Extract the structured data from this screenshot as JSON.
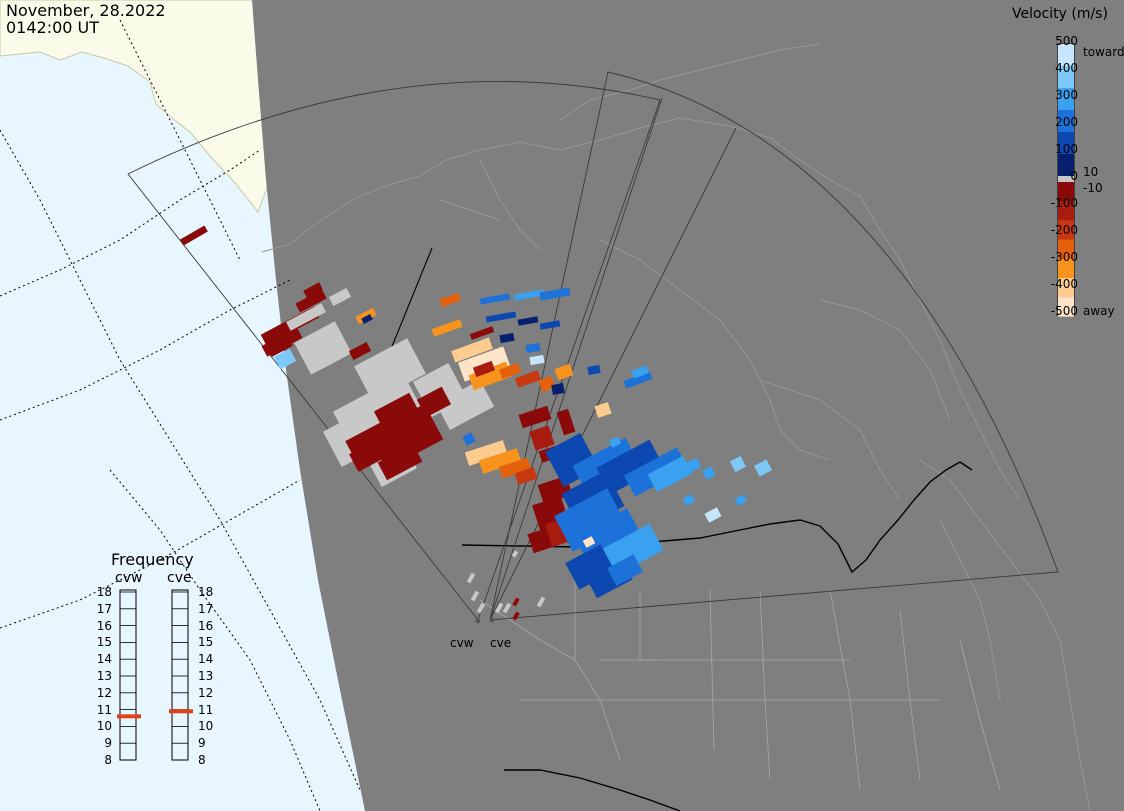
{
  "header": {
    "date": "November, 28.2022",
    "time": "0142:00 UT"
  },
  "velocity_scale": {
    "title": "Velocity (m/s)",
    "ticks": [
      "500",
      "400",
      "300",
      "200",
      "100",
      "10",
      "0",
      "-10",
      "-100",
      "-200",
      "-300",
      "-400",
      "-500"
    ],
    "toward_label": "toward",
    "away_label": "away",
    "toward_colors": [
      "#c6e6ff",
      "#7ec8f8",
      "#3aa0f0",
      "#1c72d8",
      "#0c48b0",
      "#06206e"
    ],
    "away_colors": [
      "#8a0a0a",
      "#a81c10",
      "#c83810",
      "#e4600a",
      "#f8941e",
      "#ffcc90",
      "#ffe4c8"
    ],
    "ground_scatter_color": "#c8c8c8"
  },
  "frequency_panel": {
    "title": "Frequency",
    "radars": [
      {
        "name": "cvw",
        "current_mhz": 10.6
      },
      {
        "name": "cve",
        "current_mhz": 10.9
      }
    ],
    "ticks": [
      "18",
      "17",
      "16",
      "15",
      "14",
      "13",
      "12",
      "11",
      "10",
      "9",
      "8"
    ],
    "marker_color": "#e0401a"
  },
  "sites": [
    "cvw",
    "cve"
  ],
  "colors": {
    "dark_side": "#7f7f7f",
    "daylight_ocean": "#e8f6ff",
    "daylight_land": "#fbfbea",
    "coastline": "#a0a0a0",
    "border": "#000000"
  }
}
